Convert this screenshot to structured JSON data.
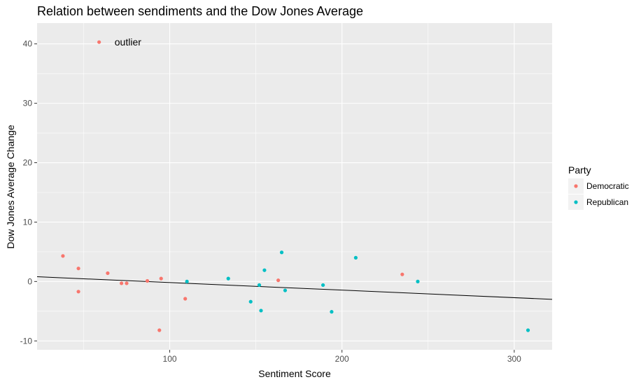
{
  "chart_data": {
    "type": "scatter",
    "title": "Relation between sendiments and the Dow Jones Average",
    "xlabel": "Sentiment Score",
    "ylabel": "Dow Jones Average Change",
    "xlim": [
      23,
      322
    ],
    "ylim": [
      -11.5,
      43.5
    ],
    "x_ticks": [
      100,
      200,
      300
    ],
    "y_ticks": [
      -10,
      0,
      10,
      20,
      30,
      40
    ],
    "grid": true,
    "panel_background": "#ebebeb",
    "legend": {
      "title": "Party",
      "placement": "right",
      "entries": [
        {
          "label": "Democratic",
          "color": "#f8766d"
        },
        {
          "label": "Republican",
          "color": "#00bfc4"
        }
      ]
    },
    "series": [
      {
        "name": "Democratic",
        "color": "#f8766d",
        "points": [
          {
            "x": 59,
            "y": 40.3
          },
          {
            "x": 38,
            "y": 4.3
          },
          {
            "x": 47,
            "y": 2.2
          },
          {
            "x": 47,
            "y": -1.7
          },
          {
            "x": 64,
            "y": 1.4
          },
          {
            "x": 72,
            "y": -0.3
          },
          {
            "x": 75,
            "y": -0.3
          },
          {
            "x": 87,
            "y": 0.1
          },
          {
            "x": 95,
            "y": 0.5
          },
          {
            "x": 94,
            "y": -8.2
          },
          {
            "x": 109,
            "y": -2.9
          },
          {
            "x": 163,
            "y": 0.2
          },
          {
            "x": 235,
            "y": 1.2
          }
        ]
      },
      {
        "name": "Republican",
        "color": "#00bfc4",
        "points": [
          {
            "x": 110,
            "y": 0.0
          },
          {
            "x": 134,
            "y": 0.5
          },
          {
            "x": 147,
            "y": -3.4
          },
          {
            "x": 152,
            "y": -0.6
          },
          {
            "x": 153,
            "y": -4.9
          },
          {
            "x": 155,
            "y": 1.9
          },
          {
            "x": 165,
            "y": 4.9
          },
          {
            "x": 167,
            "y": -1.5
          },
          {
            "x": 189,
            "y": -0.6
          },
          {
            "x": 194,
            "y": -5.1
          },
          {
            "x": 208,
            "y": 4.0
          },
          {
            "x": 244,
            "y": 0.0
          },
          {
            "x": 308,
            "y": -8.2
          }
        ]
      }
    ],
    "trend_line": {
      "color": "#000000",
      "x": [
        23,
        322
      ],
      "y": [
        0.8,
        -3.0
      ]
    },
    "annotations": [
      {
        "text": "outlier",
        "x": 68,
        "y": 40.3
      }
    ]
  }
}
